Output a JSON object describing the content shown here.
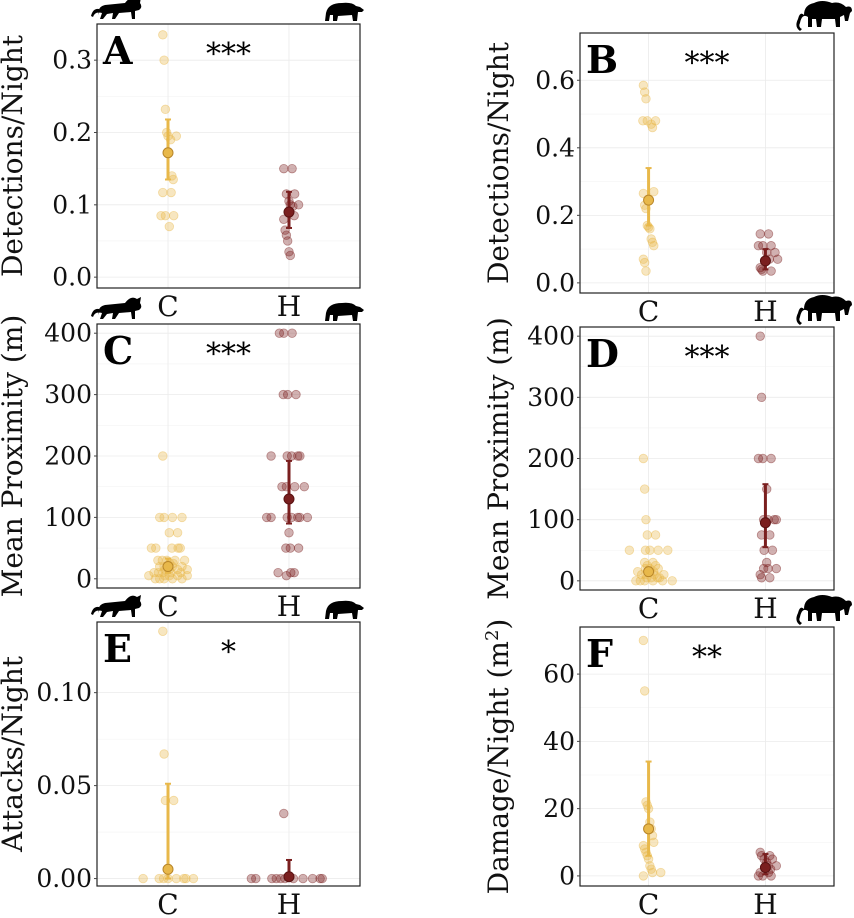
{
  "figure": {
    "background": "#ffffff",
    "colors": {
      "C": "#E8B84A",
      "H": "#7A1F1F",
      "grid": "#ebebeb",
      "frame": "#222222"
    }
  },
  "chart_data": [
    {
      "type": "scatter",
      "panel": "A",
      "ylabel": "Detections/Night",
      "significance": "***",
      "categories": [
        "C",
        "H"
      ],
      "ylim": [
        -0.015,
        0.35
      ],
      "yticks": [
        0.0,
        0.1,
        0.2,
        0.3
      ],
      "yticklabels": [
        "0.0",
        "0.1",
        "0.2",
        "0.3"
      ],
      "icons": [
        "cat-silhouette-icon",
        "bear-silhouette-icon"
      ],
      "series": [
        {
          "group": "C",
          "mean": 0.172,
          "ci": [
            0.135,
            0.218
          ],
          "points": [
            0.335,
            0.3,
            0.232,
            0.2,
            0.195,
            0.195,
            0.19,
            0.14,
            0.135,
            0.117,
            0.117,
            0.085,
            0.085,
            0.085,
            0.07
          ]
        },
        {
          "group": "H",
          "mean": 0.09,
          "ci": [
            0.068,
            0.118
          ],
          "points": [
            0.15,
            0.15,
            0.115,
            0.115,
            0.105,
            0.1,
            0.1,
            0.098,
            0.085,
            0.08,
            0.065,
            0.058,
            0.05,
            0.035,
            0.03
          ]
        }
      ]
    },
    {
      "type": "scatter",
      "panel": "B",
      "ylabel": "Detections/Night",
      "significance": "***",
      "categories": [
        "C",
        "H"
      ],
      "ylim": [
        -0.03,
        0.74
      ],
      "yticks": [
        0.0,
        0.2,
        0.4,
        0.6
      ],
      "yticklabels": [
        "0.0",
        "0.2",
        "0.4",
        "0.6"
      ],
      "icons": [
        "elephant-silhouette-icon"
      ],
      "series": [
        {
          "group": "C",
          "mean": 0.245,
          "ci": [
            0.17,
            0.34
          ],
          "points": [
            0.585,
            0.565,
            0.545,
            0.48,
            0.48,
            0.48,
            0.47,
            0.46,
            0.27,
            0.265,
            0.23,
            0.22,
            0.17,
            0.165,
            0.16,
            0.13,
            0.12,
            0.11,
            0.07,
            0.06,
            0.035
          ]
        },
        {
          "group": "H",
          "mean": 0.065,
          "ci": [
            0.04,
            0.1
          ],
          "points": [
            0.145,
            0.145,
            0.11,
            0.11,
            0.11,
            0.09,
            0.09,
            0.07,
            0.07,
            0.045,
            0.04,
            0.035,
            0.035
          ]
        }
      ]
    },
    {
      "type": "scatter",
      "panel": "C",
      "ylabel": "Mean Proximity (m)",
      "significance": "***",
      "categories": [
        "C",
        "H"
      ],
      "ylim": [
        -15,
        415
      ],
      "yticks": [
        0,
        100,
        200,
        300,
        400
      ],
      "yticklabels": [
        "0",
        "100",
        "200",
        "300",
        "400"
      ],
      "icons": [
        "cat-silhouette-icon",
        "bear-silhouette-icon"
      ],
      "series": [
        {
          "group": "C",
          "mean": 20,
          "ci": [
            10,
            33
          ],
          "points": [
            200,
            100,
            100,
            100,
            100,
            75,
            75,
            50,
            50,
            50,
            50,
            50,
            30,
            30,
            30,
            30,
            30,
            25,
            25,
            20,
            20,
            20,
            20,
            15,
            15,
            15,
            15,
            10,
            10,
            10,
            10,
            10,
            5,
            5,
            5,
            5,
            5,
            0,
            0,
            0,
            0,
            0
          ]
        },
        {
          "group": "H",
          "mean": 130,
          "ci": [
            90,
            192
          ],
          "points": [
            400,
            400,
            400,
            300,
            300,
            300,
            200,
            200,
            200,
            200,
            200,
            150,
            150,
            150,
            150,
            100,
            100,
            100,
            100,
            100,
            100,
            100,
            75,
            50,
            50,
            50,
            10,
            10,
            10,
            5
          ]
        }
      ]
    },
    {
      "type": "scatter",
      "panel": "D",
      "ylabel": "Mean Proximity (m)",
      "significance": "***",
      "categories": [
        "C",
        "H"
      ],
      "ylim": [
        -15,
        415
      ],
      "yticks": [
        0,
        100,
        200,
        300,
        400
      ],
      "yticklabels": [
        "0",
        "100",
        "200",
        "300",
        "400"
      ],
      "icons": [
        "elephant-silhouette-icon"
      ],
      "series": [
        {
          "group": "C",
          "mean": 15,
          "ci": [
            8,
            22
          ],
          "points": [
            200,
            150,
            100,
            75,
            75,
            50,
            50,
            50,
            50,
            50,
            30,
            30,
            25,
            25,
            20,
            20,
            20,
            15,
            15,
            15,
            10,
            10,
            10,
            10,
            5,
            5,
            5,
            5,
            0,
            0,
            0,
            0,
            0,
            0
          ]
        },
        {
          "group": "H",
          "mean": 95,
          "ci": [
            55,
            158
          ],
          "points": [
            400,
            300,
            200,
            200,
            200,
            150,
            100,
            100,
            100,
            100,
            75,
            75,
            50,
            50,
            30,
            20,
            20,
            20,
            10,
            5,
            5
          ]
        }
      ]
    },
    {
      "type": "scatter",
      "panel": "E",
      "ylabel": "Attacks/Night",
      "significance": "*",
      "categories": [
        "C",
        "H"
      ],
      "ylim": [
        -0.004,
        0.138
      ],
      "yticks": [
        0.0,
        0.05,
        0.1
      ],
      "yticklabels": [
        "0.00",
        "0.05",
        "0.10"
      ],
      "icons": [
        "cat-silhouette-icon",
        "bear-silhouette-icon"
      ],
      "series": [
        {
          "group": "C",
          "mean": 0.005,
          "ci": [
            0.0,
            0.051
          ],
          "points": [
            0.133,
            0.067,
            0.042,
            0.042,
            0.0,
            0.0,
            0.0,
            0.0,
            0.0,
            0.0,
            0.0,
            0.0
          ]
        },
        {
          "group": "H",
          "mean": 0.001,
          "ci": [
            0.0,
            0.01
          ],
          "points": [
            0.035,
            0.0,
            0.0,
            0.0,
            0.0,
            0.0,
            0.0,
            0.0,
            0.0,
            0.0,
            0.0,
            0.0
          ]
        }
      ]
    },
    {
      "type": "scatter",
      "panel": "F",
      "ylabel": "Damage/Night (m",
      "ylabel_sup": "2",
      "ylabel_end": ")",
      "significance": "**",
      "categories": [
        "C",
        "H"
      ],
      "ylim": [
        -3,
        74
      ],
      "yticks": [
        0,
        20,
        40,
        60
      ],
      "yticklabels": [
        "0",
        "20",
        "40",
        "60"
      ],
      "icons": [
        "elephant-silhouette-icon"
      ],
      "series": [
        {
          "group": "C",
          "mean": 14,
          "ci": [
            6,
            34
          ],
          "points": [
            70,
            55,
            22,
            21,
            20,
            16,
            14,
            12,
            10,
            9,
            8,
            7,
            6,
            5,
            3,
            2,
            1,
            1,
            0
          ]
        },
        {
          "group": "H",
          "mean": 2.5,
          "ci": [
            0.5,
            6.5
          ],
          "points": [
            7,
            6,
            6,
            5,
            5,
            4,
            3,
            3,
            2,
            1,
            1,
            0,
            0,
            0
          ]
        }
      ]
    }
  ]
}
